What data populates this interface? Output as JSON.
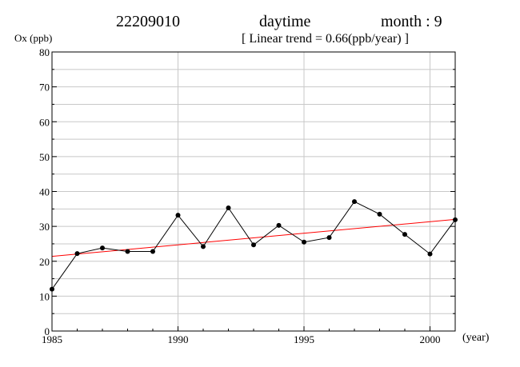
{
  "header": {
    "station": "22209010",
    "period": "daytime",
    "month": "month : 9",
    "trend": "[ Linear trend = 0.66(ppb/year) ]"
  },
  "chart_data": {
    "type": "line",
    "title": "22209010   daytime   month : 9",
    "subtitle": "[ Linear trend = 0.66(ppb/year) ]",
    "ylabel": "Ox (ppb)",
    "xlabel": "(year)",
    "xlim": [
      1985,
      2001
    ],
    "ylim": [
      0,
      80
    ],
    "x_ticks": [
      1985,
      1990,
      1995,
      2000
    ],
    "y_ticks": [
      0,
      10,
      20,
      30,
      40,
      50,
      60,
      70,
      80
    ],
    "grid": true,
    "series": [
      {
        "x": [
          1985,
          1986,
          1987,
          1988,
          1989,
          1990,
          1991,
          1992,
          1993,
          1994,
          1995,
          1996,
          1997,
          1998,
          1999,
          2000,
          2001
        ],
        "values": [
          12.0,
          22.2,
          23.8,
          22.8,
          22.8,
          33.2,
          24.2,
          35.3,
          24.7,
          30.3,
          25.5,
          26.8,
          37.1,
          33.5,
          27.7,
          22.1,
          31.9
        ],
        "color": "#000000"
      }
    ],
    "trend_line": {
      "x": [
        1985,
        2001
      ],
      "values": [
        21.4,
        32.0
      ],
      "slope": 0.66,
      "color": "#ff0000"
    }
  }
}
